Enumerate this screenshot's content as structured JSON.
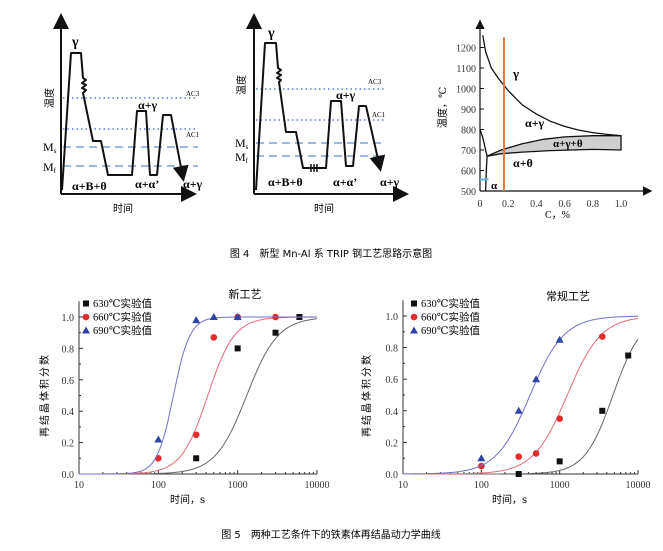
{
  "figure4": {
    "caption": "图 4　新型 Mn-Al 系 TRIP 钢工艺思路示意图",
    "schematic_new": {
      "ylabel": "温度",
      "xlabel": "时间",
      "gamma": "γ",
      "ac3": "AC3",
      "ac1": "AC1",
      "ms": {
        "main": "M",
        "sub": "s"
      },
      "mf": {
        "main": "M",
        "sub": "f"
      },
      "phase1": "α+B+θ",
      "phase2": "α+α’",
      "phase3": "α+γ",
      "phase_peak": "α+γ"
    },
    "schematic_conventional": {
      "ylabel": "温度",
      "xlabel": "时间",
      "gamma": "γ",
      "ac3": "AC3",
      "ac1": "AC1",
      "ms": {
        "main": "M",
        "sub": "s"
      },
      "mf": {
        "main": "M",
        "sub": "f"
      },
      "phase1": "α+B+θ",
      "phase2": "α+α’",
      "phase3": "α+γ",
      "phase_peak": "α+γ"
    },
    "phase_diagram": {
      "ylabel": "温度，℃",
      "xlabel": "C，%",
      "yticks": [
        "500",
        "600",
        "700",
        "800",
        "900",
        "1000",
        "1100",
        "1200"
      ],
      "xticks": [
        "0",
        "0.2",
        "0.4",
        "0.6",
        "0.8",
        "1.0"
      ],
      "regions": {
        "gamma": "γ",
        "alpha_gamma": "α+γ",
        "alpha_gamma_theta": "α+γ+θ",
        "alpha_theta": "α+θ",
        "alpha": "α"
      },
      "selected_carbon": 0.17,
      "colors": {
        "composition_line": "#e07a3c",
        "band": "#cfcfcf",
        "alpha_mark": "#5ab8e0"
      }
    }
  },
  "figure5": {
    "caption": "图 5　两种工艺条件下的铁素体再结晶动力学曲线"
  },
  "chart_data": [
    {
      "type": "scatter",
      "title": "新工艺",
      "xlabel": "时间，s",
      "ylabel": "再结晶体积分数",
      "xscale": "log",
      "xlim": [
        10,
        10000
      ],
      "ylim": [
        0,
        1.1
      ],
      "xticks": [
        "10",
        "100",
        "1000",
        "10000"
      ],
      "yticks": [
        "0.0",
        "0.2",
        "0.4",
        "0.6",
        "0.8",
        "1.0"
      ],
      "legend": "top-left",
      "series": [
        {
          "name": "630℃实验值",
          "marker": "square",
          "color": "#111111",
          "fit_color": "#666666",
          "fit_t50": 1300,
          "fit_n": 2.2,
          "x": [
            300,
            1000,
            3000,
            6000
          ],
          "y": [
            0.1,
            0.8,
            0.9,
            1.0
          ]
        },
        {
          "name": "660℃实验值",
          "marker": "circle",
          "color": "#e32b2b",
          "fit_color": "#e86a78",
          "fit_t50": 420,
          "fit_n": 2.6,
          "x": [
            100,
            300,
            500,
            1000,
            3000
          ],
          "y": [
            0.1,
            0.25,
            0.87,
            1.0,
            1.0
          ]
        },
        {
          "name": "690℃实验值",
          "marker": "triangle",
          "color": "#2f44a4",
          "fit_color": "#6f6fcc",
          "fit_t50": 155,
          "fit_n": 4.2,
          "x": [
            100,
            300,
            500,
            1000
          ],
          "y": [
            0.22,
            0.98,
            1.0,
            1.0
          ]
        }
      ]
    },
    {
      "type": "scatter",
      "title": "常规工艺",
      "xlabel": "时间，s",
      "ylabel": "再结晶体积分数",
      "xscale": "log",
      "xlim": [
        10,
        10000
      ],
      "ylim": [
        0,
        1.1
      ],
      "xticks": [
        "10",
        "100",
        "1000",
        "10000"
      ],
      "yticks": [
        "0.0",
        "0.2",
        "0.4",
        "0.6",
        "0.8",
        "1.0"
      ],
      "legend": "top-left",
      "series": [
        {
          "name": "630℃实验值",
          "marker": "square",
          "color": "#111111",
          "fit_color": "#666666",
          "fit_t50": 4800,
          "fit_n": 2.4,
          "x": [
            300,
            1000,
            3500,
            7500
          ],
          "y": [
            0.0,
            0.08,
            0.4,
            0.75
          ]
        },
        {
          "name": "660℃实验值",
          "marker": "circle",
          "color": "#e32b2b",
          "fit_color": "#e86a78",
          "fit_t50": 1250,
          "fit_n": 2.0,
          "x": [
            100,
            300,
            500,
            1000,
            3500
          ],
          "y": [
            0.05,
            0.11,
            0.13,
            0.35,
            0.87
          ]
        },
        {
          "name": "690℃实验值",
          "marker": "triangle",
          "color": "#2f44a4",
          "fit_color": "#6f6fcc",
          "fit_t50": 420,
          "fit_n": 2.0,
          "x": [
            100,
            300,
            500,
            1000
          ],
          "y": [
            0.1,
            0.4,
            0.6,
            0.85
          ]
        }
      ]
    }
  ]
}
